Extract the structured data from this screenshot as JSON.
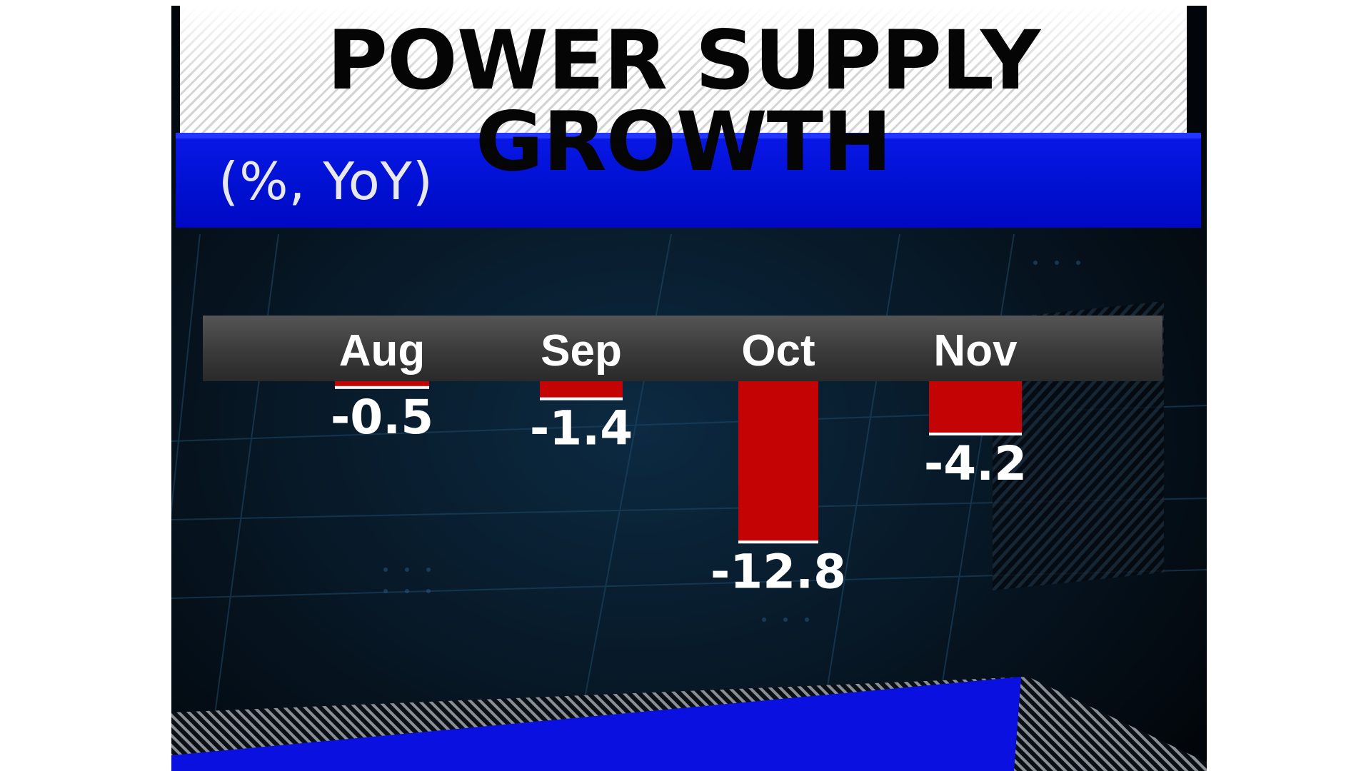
{
  "chart_data": {
    "type": "bar",
    "title": "POWER SUPPLY GROWTH",
    "subtitle": "(%, YoY)",
    "categories": [
      "Aug",
      "Sep",
      "Oct",
      "Nov"
    ],
    "values": [
      -0.5,
      -1.4,
      -12.8,
      -4.2
    ],
    "value_labels": [
      "-0.5",
      "-1.4",
      "-12.8",
      "-4.2"
    ],
    "colors": {
      "bar": "#c40404",
      "title_band": "#ffffff",
      "subtitle_band": "#0010d0",
      "background": "#04080e",
      "category_strip": "#444444"
    },
    "legend": "none",
    "grid": false
  }
}
